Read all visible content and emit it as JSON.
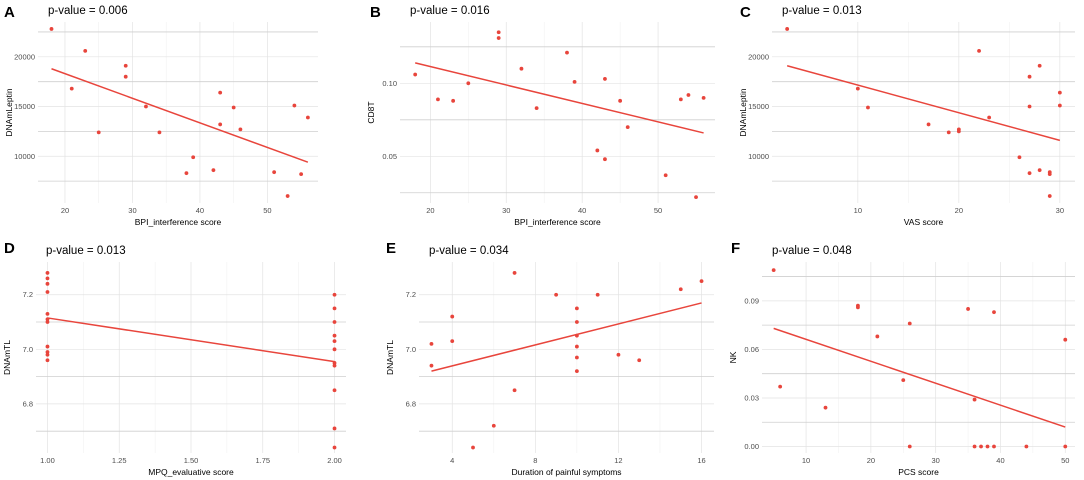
{
  "chart_data": [
    {
      "type": "scatter",
      "panel": "A",
      "title": "p-value = 0.006",
      "xlabel": "BPI_interference score",
      "ylabel": "DNAmLeptin",
      "xlim": [
        16,
        57.5
      ],
      "ylim": [
        5300,
        23500
      ],
      "xticks": [
        20,
        30,
        40,
        50
      ],
      "xtick_labels": [
        "20",
        "30",
        "40",
        "50"
      ],
      "yticks": [
        10000,
        15000,
        20000
      ],
      "ytick_labels": [
        "10000",
        "15000",
        "20000"
      ],
      "hlines": [
        7500,
        12500,
        17500,
        22500
      ],
      "x": [
        18,
        21,
        23,
        25,
        29,
        29,
        32,
        34,
        38,
        39,
        42,
        43,
        43,
        45,
        46,
        51,
        53,
        54,
        55,
        56
      ],
      "y": [
        22800,
        16800,
        20600,
        12400,
        19100,
        18000,
        15000,
        12400,
        8300,
        9900,
        8600,
        16400,
        13200,
        14900,
        12700,
        8400,
        6000,
        15100,
        8200,
        13900
      ],
      "fit": {
        "x": [
          18,
          56
        ],
        "y": [
          18800,
          9400
        ]
      }
    },
    {
      "type": "scatter",
      "panel": "B",
      "title": "p-value = 0.016",
      "xlabel": "BPI_interference score",
      "ylabel": "CD8T",
      "xlim": [
        16,
        57.5
      ],
      "ylim": [
        0.018,
        0.142
      ],
      "xticks": [
        20,
        30,
        40,
        50
      ],
      "xtick_labels": [
        "20",
        "30",
        "40",
        "50"
      ],
      "yticks": [
        0.05,
        0.1
      ],
      "ytick_labels": [
        "0.05",
        "0.10"
      ],
      "hlines": [
        0.025,
        0.075,
        0.125
      ],
      "x": [
        18,
        21,
        23,
        25,
        29,
        29,
        32,
        34,
        38,
        39,
        42,
        43,
        43,
        45,
        46,
        51,
        53,
        54,
        55,
        56
      ],
      "y": [
        0.106,
        0.089,
        0.088,
        0.1,
        0.135,
        0.131,
        0.11,
        0.083,
        0.121,
        0.101,
        0.054,
        0.103,
        0.048,
        0.088,
        0.07,
        0.037,
        0.089,
        0.092,
        0.022,
        0.09
      ],
      "fit": {
        "x": [
          18,
          56
        ],
        "y": [
          0.114,
          0.066
        ]
      }
    },
    {
      "type": "scatter",
      "panel": "C",
      "title": "p-value = 0.013",
      "xlabel": "VAS score",
      "ylabel": "DNAmLeptin",
      "xlim": [
        1.5,
        31.5
      ],
      "ylim": [
        5300,
        23500
      ],
      "xticks": [
        10,
        20,
        30
      ],
      "xtick_labels": [
        "10",
        "20",
        "30"
      ],
      "yticks": [
        10000,
        15000,
        20000
      ],
      "ytick_labels": [
        "10000",
        "15000",
        "20000"
      ],
      "hlines": [
        7500,
        12500,
        17500,
        22500
      ],
      "x": [
        3,
        10,
        11,
        17,
        19,
        20,
        20,
        22,
        23,
        26,
        27,
        27,
        27,
        28,
        28,
        29,
        29,
        29,
        30,
        30
      ],
      "y": [
        22800,
        16800,
        14900,
        13200,
        12400,
        12700,
        12500,
        20600,
        13900,
        9900,
        18000,
        15000,
        8300,
        19100,
        8600,
        8400,
        8200,
        6000,
        16400,
        15100
      ],
      "fit": {
        "x": [
          3,
          30
        ],
        "y": [
          19100,
          11600
        ]
      }
    },
    {
      "type": "scatter",
      "panel": "D",
      "title": "p-value = 0.013",
      "xlabel": "MPQ_evaluative score",
      "ylabel": "DNAmTL",
      "xlim": [
        0.96,
        2.04
      ],
      "ylim": [
        6.62,
        7.32
      ],
      "xticks": [
        1.0,
        1.25,
        1.5,
        1.75,
        2.0
      ],
      "xtick_labels": [
        "1.00",
        "1.25",
        "1.50",
        "1.75",
        "2.00"
      ],
      "yticks": [
        6.8,
        7.0,
        7.2
      ],
      "ytick_labels": [
        "6.8",
        "7.0",
        "7.2"
      ],
      "hlines": [
        6.7,
        6.9,
        7.1
      ],
      "x": [
        1,
        1,
        1,
        1,
        1,
        1,
        1,
        1,
        1,
        1,
        1,
        2,
        2,
        2,
        2,
        2,
        2,
        2,
        2,
        2,
        2,
        2
      ],
      "y": [
        7.28,
        7.26,
        7.24,
        7.21,
        7.13,
        7.11,
        7.1,
        7.01,
        6.99,
        6.98,
        6.96,
        7.2,
        7.15,
        7.1,
        7.05,
        7.03,
        7.0,
        6.95,
        6.94,
        6.85,
        6.71,
        6.64
      ],
      "fit": {
        "x": [
          1,
          2
        ],
        "y": [
          7.115,
          6.955
        ]
      }
    },
    {
      "type": "scatter",
      "panel": "E",
      "title": "p-value = 0.034",
      "xlabel": "Duration of painful symptoms",
      "ylabel": "DNAmTL",
      "xlim": [
        2.4,
        16.6
      ],
      "ylim": [
        6.62,
        7.32
      ],
      "xticks": [
        4,
        8,
        12,
        16
      ],
      "xtick_labels": [
        "4",
        "8",
        "12",
        "16"
      ],
      "yticks": [
        6.8,
        7.0,
        7.2
      ],
      "ytick_labels": [
        "6.8",
        "7.0",
        "7.2"
      ],
      "hlines": [
        6.7,
        6.9,
        7.1
      ],
      "x": [
        3,
        3,
        4,
        4,
        5,
        6,
        7,
        7,
        9,
        10,
        10,
        10,
        10,
        10,
        10,
        11,
        12,
        13,
        15,
        16
      ],
      "y": [
        7.02,
        6.94,
        7.12,
        7.03,
        6.64,
        6.72,
        7.28,
        6.85,
        7.2,
        7.15,
        7.1,
        7.05,
        7.01,
        6.97,
        6.92,
        7.2,
        6.98,
        6.96,
        7.22,
        7.25
      ],
      "fit": {
        "x": [
          3,
          16
        ],
        "y": [
          6.92,
          7.17
        ]
      }
    },
    {
      "type": "scatter",
      "panel": "F",
      "title": "p-value = 0.048",
      "xlabel": "PCS score",
      "ylabel": "NK",
      "xlim": [
        3.2,
        51.5
      ],
      "ylim": [
        -0.004,
        0.114
      ],
      "xticks": [
        10,
        20,
        30,
        40,
        50
      ],
      "xtick_labels": [
        "10",
        "20",
        "30",
        "40",
        "50"
      ],
      "yticks": [
        0.0,
        0.03,
        0.06,
        0.09
      ],
      "ytick_labels": [
        "0.00",
        "0.03",
        "0.06",
        "0.09"
      ],
      "hlines": [
        0.015,
        0.045,
        0.075,
        0.105
      ],
      "x": [
        5,
        6,
        13,
        18,
        18,
        21,
        25,
        26,
        26,
        35,
        36,
        36,
        37,
        38,
        39,
        39,
        44,
        50,
        50
      ],
      "y": [
        0.109,
        0.037,
        0.024,
        0.087,
        0.086,
        0.068,
        0.041,
        0.076,
        0.0,
        0.085,
        0.029,
        0.0,
        0.0,
        0.0,
        0.0,
        0.083,
        0.0,
        0.066,
        0.0
      ],
      "fit": {
        "x": [
          5,
          50
        ],
        "y": [
          0.073,
          0.012
        ]
      }
    }
  ]
}
